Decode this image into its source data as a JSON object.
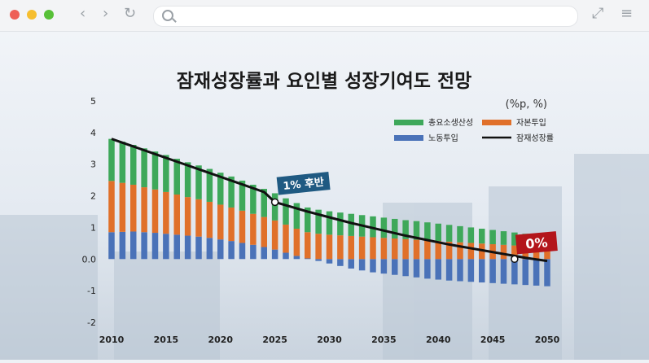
{
  "browser": {
    "back_icon": "chevron-left-icon",
    "forward_icon": "chevron-right-icon",
    "reload_icon": "reload-icon",
    "search_icon": "search-icon",
    "expand_icon": "expand-icon",
    "menu_icon": "hamburger-icon"
  },
  "chart_data": {
    "type": "bar",
    "title": "잠재성장률과 요인별 성장기여도 전망",
    "unit": "(%p, %)",
    "ylim": [
      -2,
      5
    ],
    "yticks": [
      "5",
      "4",
      "3",
      "2",
      "1",
      "0.0",
      "-1",
      "-2"
    ],
    "xticks": [
      "2010",
      "2015",
      "2020",
      "2025",
      "2030",
      "2035",
      "2040",
      "2045",
      "2050"
    ],
    "x": [
      2010,
      2011,
      2012,
      2013,
      2014,
      2015,
      2016,
      2017,
      2018,
      2019,
      2020,
      2021,
      2022,
      2023,
      2024,
      2025,
      2026,
      2027,
      2028,
      2029,
      2030,
      2031,
      2032,
      2033,
      2034,
      2035,
      2036,
      2037,
      2038,
      2039,
      2040,
      2041,
      2042,
      2043,
      2044,
      2045,
      2046,
      2047,
      2048,
      2049,
      2050
    ],
    "series": [
      {
        "name": "노동투입",
        "color": "#4a72b8",
        "values": [
          0.85,
          0.86,
          0.87,
          0.85,
          0.83,
          0.8,
          0.77,
          0.74,
          0.71,
          0.67,
          0.62,
          0.57,
          0.51,
          0.45,
          0.38,
          0.3,
          0.2,
          0.1,
          0.02,
          -0.06,
          -0.14,
          -0.22,
          -0.3,
          -0.36,
          -0.42,
          -0.46,
          -0.5,
          -0.54,
          -0.58,
          -0.62,
          -0.65,
          -0.68,
          -0.7,
          -0.72,
          -0.74,
          -0.76,
          -0.78,
          -0.8,
          -0.82,
          -0.84,
          -0.86
        ]
      },
      {
        "name": "자본투입",
        "color": "#e0702a",
        "values": [
          1.62,
          1.55,
          1.48,
          1.42,
          1.37,
          1.32,
          1.27,
          1.22,
          1.18,
          1.14,
          1.1,
          1.06,
          1.02,
          0.98,
          0.95,
          0.92,
          0.89,
          0.86,
          0.83,
          0.8,
          0.77,
          0.75,
          0.73,
          0.71,
          0.69,
          0.67,
          0.65,
          0.63,
          0.61,
          0.59,
          0.57,
          0.55,
          0.53,
          0.51,
          0.49,
          0.47,
          0.45,
          0.43,
          0.41,
          0.39,
          0.37
        ]
      },
      {
        "name": "총요소생산성",
        "color": "#3ea85a",
        "values": [
          1.33,
          1.3,
          1.26,
          1.23,
          1.2,
          1.17,
          1.13,
          1.1,
          1.07,
          1.04,
          1.01,
          0.98,
          0.95,
          0.92,
          0.89,
          0.86,
          0.83,
          0.81,
          0.78,
          0.76,
          0.74,
          0.72,
          0.7,
          0.68,
          0.66,
          0.64,
          0.62,
          0.6,
          0.59,
          0.57,
          0.55,
          0.53,
          0.51,
          0.49,
          0.47,
          0.45,
          0.43,
          0.41,
          0.39,
          0.37,
          0.35
        ]
      }
    ],
    "line": {
      "name": "잠재성장률",
      "color": "#111111",
      "values": [
        3.8,
        3.68,
        3.56,
        3.44,
        3.32,
        3.2,
        3.08,
        2.96,
        2.84,
        2.72,
        2.6,
        2.48,
        2.36,
        2.24,
        2.12,
        1.8,
        1.7,
        1.6,
        1.5,
        1.41,
        1.32,
        1.23,
        1.14,
        1.06,
        0.98,
        0.9,
        0.82,
        0.74,
        0.67,
        0.6,
        0.53,
        0.46,
        0.4,
        0.34,
        0.28,
        0.22,
        0.16,
        0.1,
        0.04,
        -0.01,
        -0.06
      ]
    },
    "annotations": [
      {
        "text": "1% 후반",
        "x": 2025,
        "y": 1.8
      },
      {
        "text": "0%",
        "x": 2047,
        "y": 0.0
      }
    ],
    "legend_placement": "top-right"
  }
}
